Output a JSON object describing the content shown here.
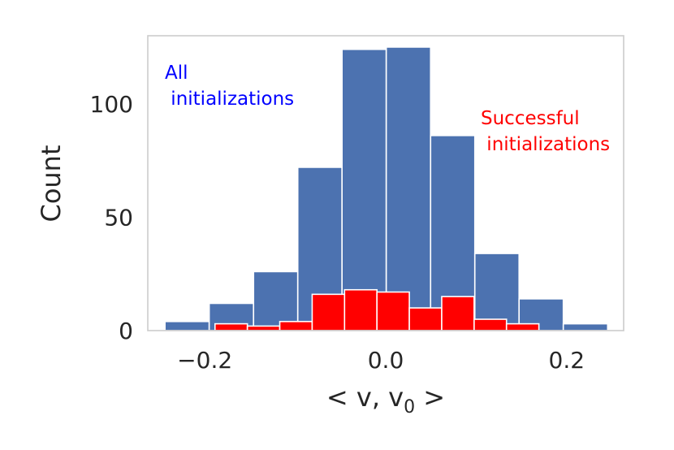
{
  "chart_data": {
    "type": "bar",
    "title": "",
    "xlabel_parts": [
      "< v, v",
      "0",
      " >"
    ],
    "ylabel": "Count",
    "xlim": [
      -0.263,
      0.263
    ],
    "ylim": [
      0,
      130
    ],
    "grid": false,
    "xticks": [
      {
        "value": -0.2,
        "label": "−0.2"
      },
      {
        "value": 0.0,
        "label": "0.0"
      },
      {
        "value": 0.2,
        "label": "0.2"
      }
    ],
    "yticks": [
      {
        "value": 0,
        "label": "0"
      },
      {
        "value": 50,
        "label": "50"
      },
      {
        "value": 100,
        "label": "100"
      }
    ],
    "series": [
      {
        "name": "All initializations",
        "color": "#4c72b0",
        "bin_edges": [
          -0.244,
          -0.1951,
          -0.1461,
          -0.0972,
          -0.0483,
          0.0006,
          0.0496,
          0.0985,
          0.1474,
          0.1963,
          0.2453
        ],
        "values": [
          4,
          12,
          26,
          72,
          124,
          125,
          86,
          34,
          14,
          3
        ]
      },
      {
        "name": "Successful initializations",
        "color": "#ff0000",
        "bin_edges": [
          -0.1887,
          -0.1529,
          -0.1171,
          -0.0813,
          -0.0455,
          -0.0097,
          0.0261,
          0.0619,
          0.0977,
          0.1335,
          0.1693
        ],
        "values": [
          3,
          2,
          4,
          16,
          18,
          17,
          10,
          15,
          5,
          3
        ]
      }
    ],
    "annotations": [
      {
        "lines": [
          "All",
          " initializations"
        ],
        "color": "#0000ff",
        "placement": "top-left"
      },
      {
        "lines": [
          "Successful",
          " initializations"
        ],
        "color": "#ff0000",
        "placement": "right"
      }
    ]
  }
}
